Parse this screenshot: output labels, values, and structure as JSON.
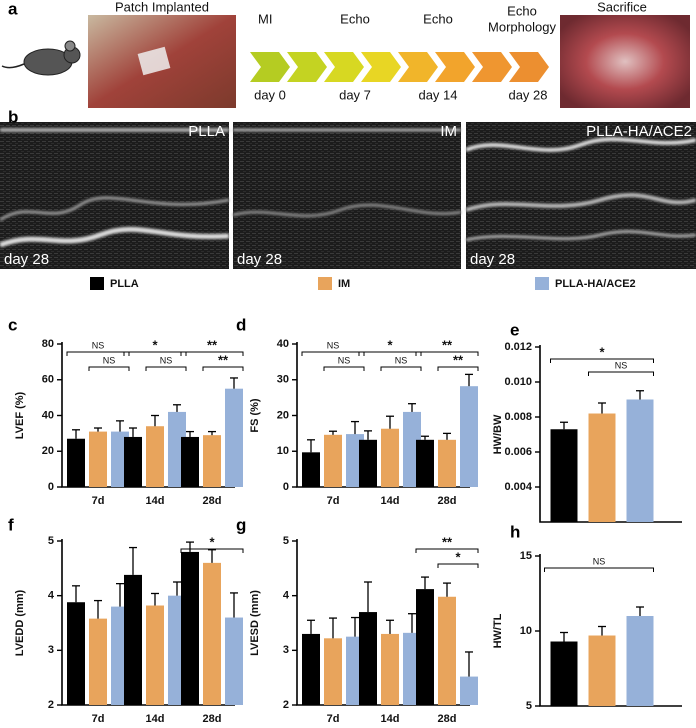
{
  "timeline": {
    "label": "a",
    "left_photo": "Patch Implanted",
    "right_photo": "Sacrifice",
    "stages": [
      [
        "MI"
      ],
      [
        "Echo"
      ],
      [
        "Echo"
      ],
      [
        "Echo",
        "Morphology"
      ]
    ],
    "days": [
      "day 0",
      "day 7",
      "day 14",
      "day 28"
    ]
  },
  "echo": {
    "label": "b",
    "images": [
      {
        "name": "PLLA",
        "day": "day 28"
      },
      {
        "name": "IM",
        "day": "day 28"
      },
      {
        "name": "PLLA-HA/ACE2",
        "day": "day 28"
      }
    ]
  },
  "legend": [
    {
      "name": "PLLA",
      "color": "#000000"
    },
    {
      "name": "IM",
      "color": "#e8a45c"
    },
    {
      "name": "PLLA-HA/ACE2",
      "color": "#96b1d9"
    }
  ],
  "chart_data": [
    {
      "label": "c",
      "type": "bar",
      "ylabel": "LVEF (%)",
      "ylim": [
        0,
        80
      ],
      "yticks": [
        0,
        20,
        40,
        60,
        80
      ],
      "categories": [
        "7d",
        "14d",
        "28d"
      ],
      "series": [
        {
          "values": [
            27,
            28,
            28
          ],
          "errors": [
            5,
            5,
            3
          ]
        },
        {
          "values": [
            31,
            34,
            29
          ],
          "errors": [
            2,
            6,
            2
          ]
        },
        {
          "values": [
            31,
            42,
            55
          ],
          "errors": [
            6,
            4,
            6
          ]
        }
      ],
      "annotations": [
        [
          "NS",
          "NS"
        ],
        [
          "*",
          "NS"
        ],
        [
          "**",
          "**"
        ]
      ]
    },
    {
      "label": "d",
      "type": "bar",
      "ylabel": "FS (%)",
      "ylim": [
        0,
        40
      ],
      "yticks": [
        0,
        10,
        20,
        30,
        40
      ],
      "categories": [
        "7d",
        "14d",
        "28d"
      ],
      "series": [
        {
          "values": [
            9.7,
            13.2,
            13.2
          ],
          "errors": [
            3.5,
            2.5,
            1
          ]
        },
        {
          "values": [
            14.6,
            16.3,
            13.2
          ],
          "errors": [
            1,
            3.5,
            1.8
          ]
        },
        {
          "values": [
            14.8,
            21,
            28.2
          ],
          "errors": [
            3.5,
            2.3,
            3.3
          ]
        }
      ],
      "annotations": [
        [
          "NS",
          "NS"
        ],
        [
          "*",
          "NS"
        ],
        [
          "**",
          "**"
        ]
      ]
    },
    {
      "label": "e",
      "type": "single_bar",
      "ylabel": "HW/BW",
      "ylim": [
        0.002,
        0.012
      ],
      "yticks": [
        0.004,
        0.006,
        0.008,
        {
          "value": 0.01,
          "label": "0.010"
        },
        0.012
      ],
      "values": [
        0.0073,
        0.0082,
        0.009
      ],
      "errors": [
        0.0004,
        0.0006,
        0.0005
      ],
      "annotations": [
        "*",
        "NS"
      ]
    },
    {
      "label": "f",
      "type": "bar",
      "ylabel": "LVEDD (mm)",
      "ylim": [
        2,
        5
      ],
      "yticks": [
        2,
        3,
        4,
        5
      ],
      "categories": [
        "7d",
        "14d",
        "28d"
      ],
      "series": [
        {
          "values": [
            3.88,
            4.38,
            4.8
          ],
          "errors": [
            0.3,
            0.5,
            0.18
          ]
        },
        {
          "values": [
            3.58,
            3.82,
            4.6
          ],
          "errors": [
            0.33,
            0.22,
            0.24
          ]
        },
        {
          "values": [
            3.8,
            4.0,
            3.6
          ],
          "errors": [
            0.42,
            0.25,
            0.45
          ]
        }
      ],
      "annotations": [
        [],
        [],
        [
          "*"
        ]
      ]
    },
    {
      "label": "g",
      "type": "bar",
      "ylabel": "LVESD (mm)",
      "ylim": [
        2,
        5
      ],
      "yticks": [
        2,
        3,
        4,
        5
      ],
      "categories": [
        "7d",
        "14d",
        "28d"
      ],
      "series": [
        {
          "values": [
            3.3,
            3.7,
            4.12
          ],
          "errors": [
            0.25,
            0.55,
            0.22
          ]
        },
        {
          "values": [
            3.22,
            3.3,
            3.98
          ],
          "errors": [
            0.37,
            0.25,
            0.25
          ]
        },
        {
          "values": [
            3.25,
            3.32,
            2.52
          ],
          "errors": [
            0.35,
            0.35,
            0.45
          ]
        }
      ],
      "annotations": [
        [],
        [],
        [
          "**",
          "*"
        ]
      ]
    },
    {
      "label": "h",
      "type": "single_bar",
      "ylabel": "HW/TL",
      "ylim": [
        5,
        15
      ],
      "yticks": [
        5,
        10,
        15
      ],
      "values": [
        9.3,
        9.7,
        11.0
      ],
      "errors": [
        0.6,
        0.6,
        0.6
      ],
      "annotations": [
        "NS"
      ]
    }
  ]
}
